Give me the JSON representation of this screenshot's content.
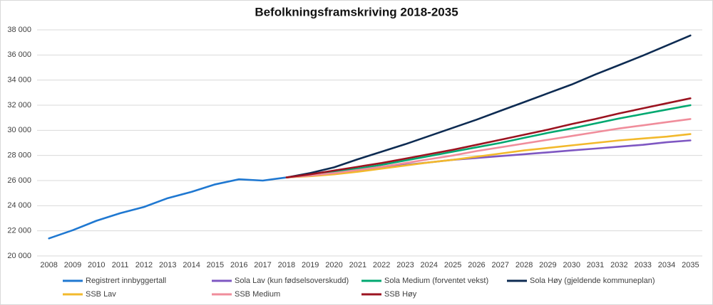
{
  "chart_data": {
    "type": "line",
    "title": "Befolkningsframskriving 2018-2035",
    "categories": [
      "2008",
      "2009",
      "2010",
      "2011",
      "2012",
      "2013",
      "2014",
      "2015",
      "2016",
      "2017",
      "2018",
      "2019",
      "2020",
      "2021",
      "2022",
      "2023",
      "2024",
      "2025",
      "2026",
      "2027",
      "2028",
      "2029",
      "2030",
      "2031",
      "2032",
      "2033",
      "2034",
      "2035"
    ],
    "ylim": [
      20000,
      38000
    ],
    "yticks": [
      {
        "value": 20000,
        "label": "20 000"
      },
      {
        "value": 22000,
        "label": "22 000"
      },
      {
        "value": 24000,
        "label": "24 000"
      },
      {
        "value": 26000,
        "label": "26 000"
      },
      {
        "value": 28000,
        "label": "28 000"
      },
      {
        "value": 30000,
        "label": "30 000"
      },
      {
        "value": 32000,
        "label": "32 000"
      },
      {
        "value": 34000,
        "label": "34 000"
      },
      {
        "value": 36000,
        "label": "36 000"
      },
      {
        "value": 38000,
        "label": "38 000"
      }
    ],
    "grid": true,
    "legend": "bottom",
    "series": [
      {
        "name": "Registrert innbyggertall",
        "color": "#1f78d1",
        "values": [
          21400,
          22050,
          22800,
          23400,
          23900,
          24600,
          25100,
          25700,
          26100,
          26000,
          26250,
          null,
          null,
          null,
          null,
          null,
          null,
          null,
          null,
          null,
          null,
          null,
          null,
          null,
          null,
          null,
          null,
          null
        ]
      },
      {
        "name": "Sola Lav (kun fødselsoverskudd)",
        "color": "#7e57c2",
        "values": [
          null,
          null,
          null,
          null,
          null,
          null,
          null,
          null,
          null,
          null,
          26250,
          26400,
          26550,
          26750,
          27000,
          27250,
          27450,
          27650,
          27800,
          27950,
          28100,
          28250,
          28400,
          28550,
          28700,
          28850,
          29050,
          29200
        ]
      },
      {
        "name": "Sola Medium (forventet vekst)",
        "color": "#00a870",
        "values": [
          null,
          null,
          null,
          null,
          null,
          null,
          null,
          null,
          null,
          null,
          26250,
          26450,
          26700,
          26950,
          27250,
          27600,
          27950,
          28300,
          28650,
          29000,
          29400,
          29800,
          30150,
          30550,
          30950,
          31300,
          31650,
          32000
        ]
      },
      {
        "name": "Sola Høy (gjeldende kommuneplan)",
        "color": "#0d2b52",
        "values": [
          null,
          null,
          null,
          null,
          null,
          null,
          null,
          null,
          null,
          null,
          26250,
          26600,
          27050,
          27700,
          28300,
          28900,
          29550,
          30200,
          30850,
          31550,
          32250,
          32950,
          33650,
          34450,
          35200,
          35950,
          36750,
          37550
        ]
      },
      {
        "name": "SSB Lav",
        "color": "#f2b92c",
        "values": [
          null,
          null,
          null,
          null,
          null,
          null,
          null,
          null,
          null,
          null,
          26250,
          26350,
          26500,
          26700,
          26950,
          27200,
          27450,
          27650,
          27900,
          28150,
          28400,
          28600,
          28800,
          29000,
          29200,
          29350,
          29500,
          29700
        ]
      },
      {
        "name": "SSB Medium",
        "color": "#f08d9b",
        "values": [
          null,
          null,
          null,
          null,
          null,
          null,
          null,
          null,
          null,
          null,
          26250,
          26400,
          26600,
          26850,
          27100,
          27400,
          27700,
          28000,
          28350,
          28650,
          28950,
          29250,
          29550,
          29850,
          30150,
          30400,
          30650,
          30900
        ]
      },
      {
        "name": "SSB Høy",
        "color": "#9b1320",
        "values": [
          null,
          null,
          null,
          null,
          null,
          null,
          null,
          null,
          null,
          null,
          26250,
          26500,
          26800,
          27100,
          27400,
          27750,
          28100,
          28450,
          28850,
          29250,
          29650,
          30050,
          30500,
          30900,
          31350,
          31750,
          32150,
          32550
        ]
      }
    ]
  }
}
